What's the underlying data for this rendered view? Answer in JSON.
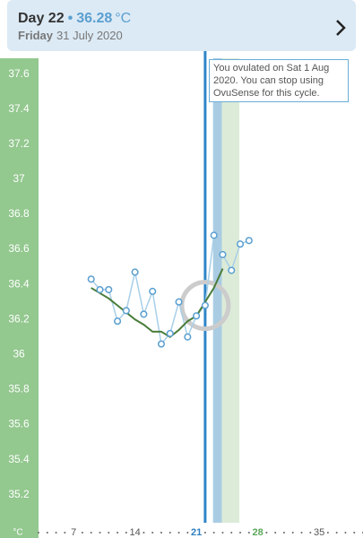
{
  "header": {
    "day_label": "Day 22",
    "separator": "•",
    "temperature": "36.28",
    "unit": "°C",
    "weekday": "Friday",
    "date": "31 July 2020"
  },
  "chart_data": {
    "type": "line",
    "annotation": "You ovulated on Sat 1 Aug 2020. You can stop using OvuSense for this cycle.",
    "y_label": "°C",
    "xlim": [
      3,
      40
    ],
    "ylim": [
      35.04,
      37.69
    ],
    "xticks": [
      7,
      14,
      21,
      28,
      35
    ],
    "xtick_colors": [
      "#555555",
      "#555555",
      "#2f7fc1",
      "#5aa85a",
      "#555555"
    ],
    "yticks": [
      35.2,
      35.4,
      35.6,
      35.8,
      36,
      36.2,
      36.4,
      36.6,
      36.8,
      37,
      37.2,
      37.4,
      37.6
    ],
    "cursor": 22,
    "cursor_color": "#2e86c8",
    "bands": [
      {
        "from": 22.9,
        "to": 23.9,
        "color": "#a9cce3"
      },
      {
        "from": 23.9,
        "to": 25.9,
        "color": "#dcebd8"
      }
    ],
    "series": [
      {
        "color": "#5a9fd0",
        "x": [
          9,
          10,
          11,
          12,
          13,
          14,
          15,
          16,
          17,
          18,
          19,
          20,
          21,
          22,
          23,
          24,
          25,
          26,
          27
        ],
        "values": [
          36.43,
          36.37,
          36.37,
          36.19,
          36.25,
          36.47,
          36.23,
          36.36,
          36.06,
          36.12,
          36.3,
          36.1,
          36.22,
          36.28,
          36.68,
          36.57,
          36.48,
          36.63,
          36.65
        ]
      },
      {
        "color": "#4a7d3a",
        "x": [
          9,
          10,
          11,
          12,
          13,
          14,
          15,
          16,
          17,
          18,
          19,
          20,
          21,
          22,
          23,
          24
        ],
        "values": [
          36.38,
          36.35,
          36.32,
          36.28,
          36.24,
          36.2,
          36.17,
          36.13,
          36.13,
          36.1,
          36.14,
          36.19,
          36.22,
          36.3,
          36.38,
          36.49
        ]
      }
    ]
  }
}
